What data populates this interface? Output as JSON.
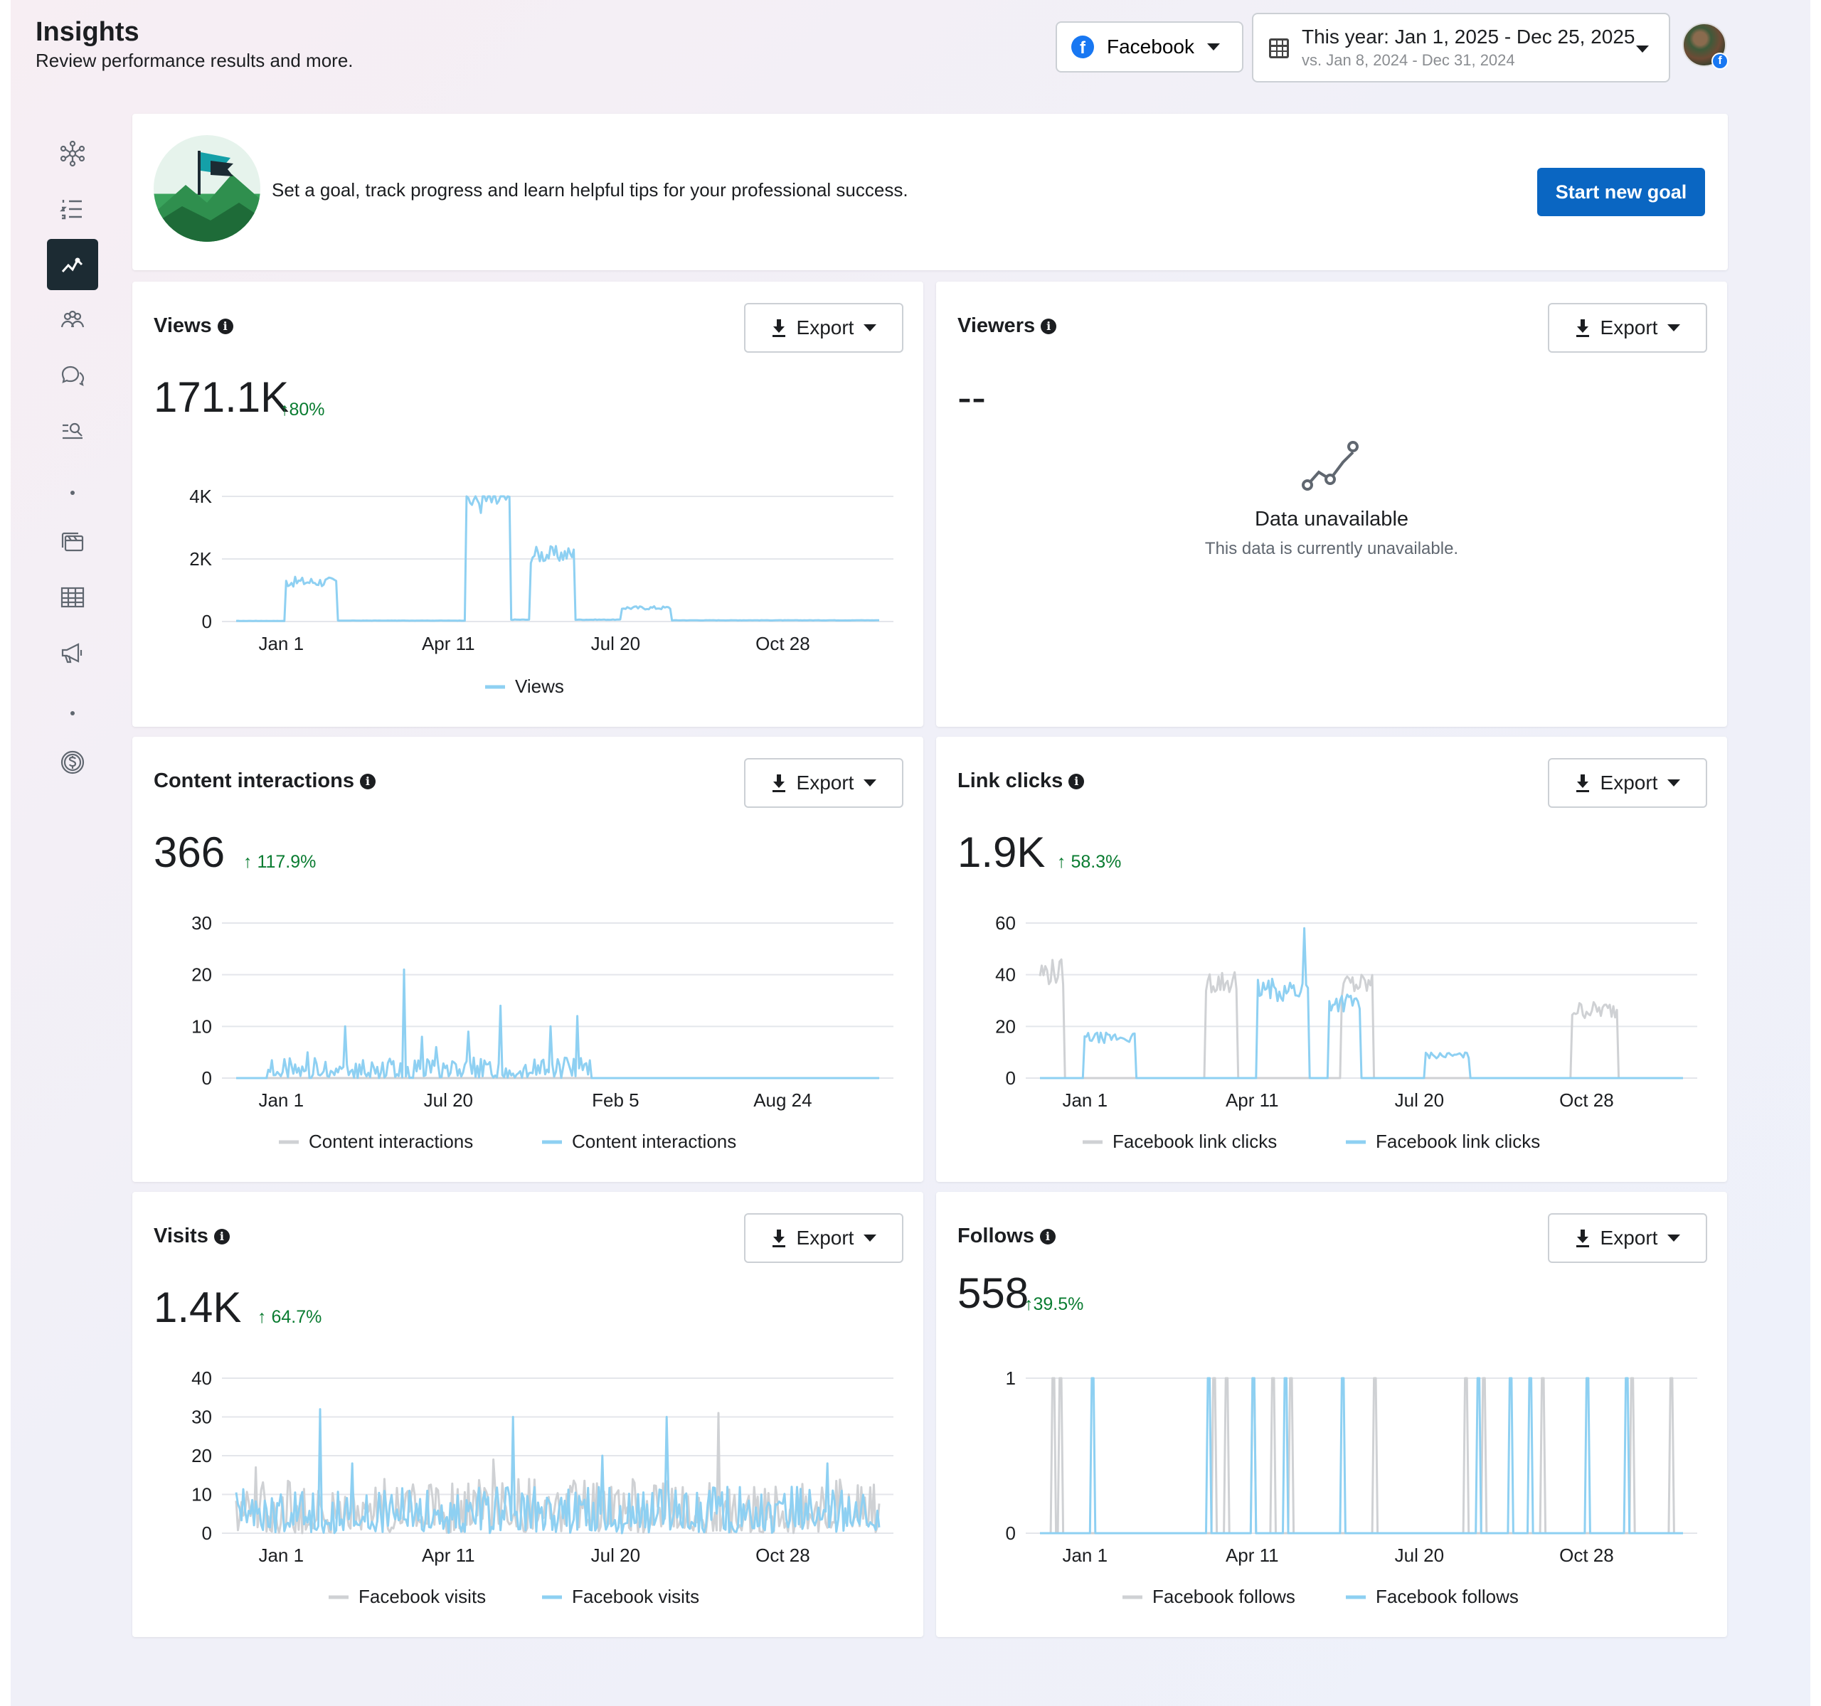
{
  "header": {
    "title": "Insights",
    "subtitle": "Review performance results and more.",
    "platform_label": "Facebook",
    "date_range": "This year: Jan 1, 2025 - Dec 25, 2025",
    "date_compare": "vs. Jan 8, 2024 - Dec 31, 2024"
  },
  "sidebar": {
    "icons": [
      "network-icon",
      "list-icon",
      "insights-icon",
      "audience-icon",
      "comments-icon",
      "search-list-icon",
      "content-icon",
      "table-icon",
      "megaphone-icon",
      "dollar-icon"
    ],
    "active": "insights-icon"
  },
  "goal": {
    "text": "Set a goal, track progress and learn helpful tips for your professional success.",
    "button": "Start new goal"
  },
  "export_label": "Export",
  "colors": {
    "current": "#8ed0f2",
    "previous": "#cfd1d4",
    "positive": "#0a7c31",
    "accent": "#0a66c2"
  },
  "cards": {
    "views": {
      "title": "Views",
      "value": "171.1K",
      "change": "↑80%"
    },
    "viewers": {
      "title": "Viewers",
      "value": "--",
      "unavailable_title": "Data unavailable",
      "unavailable_sub": "This data is currently unavailable."
    },
    "interactions": {
      "title": "Content interactions",
      "value": "366",
      "change": "↑ 117.9%"
    },
    "links": {
      "title": "Link clicks",
      "value": "1.9K",
      "change": "↑ 58.3%"
    },
    "visits": {
      "title": "Visits",
      "value": "1.4K",
      "change": "↑ 64.7%"
    },
    "follows": {
      "title": "Follows",
      "value": "558",
      "change": "↑39.5%"
    }
  },
  "chart_data": [
    {
      "id": "views",
      "type": "line",
      "title": "",
      "xlabel": "",
      "ylabel": "",
      "yticks": [
        "0",
        "2K",
        "4K"
      ],
      "ylim": [
        0,
        4000
      ],
      "xticks": [
        "Jan 1",
        "Apr 11",
        "Jul 20",
        "Oct 28"
      ],
      "legend": [
        "Views"
      ],
      "series": [
        {
          "name": "Views",
          "role": "current",
          "segments": [
            [
              0,
              0.08,
              20
            ],
            [
              0.08,
              0.16,
              1300
            ],
            [
              0.16,
              0.36,
              30
            ],
            [
              0.36,
              0.43,
              4000
            ],
            [
              0.43,
              0.46,
              60
            ],
            [
              0.46,
              0.53,
              2200
            ],
            [
              0.53,
              0.6,
              60
            ],
            [
              0.6,
              0.68,
              450
            ],
            [
              0.68,
              1,
              40
            ]
          ]
        }
      ]
    },
    {
      "id": "interactions",
      "type": "line",
      "title": "",
      "xlabel": "",
      "ylabel": "",
      "yticks": [
        "0",
        "10",
        "20",
        "30"
      ],
      "ylim": [
        0,
        30
      ],
      "xticks": [
        "Jan 1",
        "Jul 20",
        "Feb 5",
        "Aug 24"
      ],
      "legend": [
        "Content interactions",
        "Content interactions"
      ],
      "series": [
        {
          "name": "Content interactions",
          "role": "previous",
          "segments": [
            [
              0,
              1,
              0
            ]
          ]
        },
        {
          "name": "Content interactions",
          "role": "current",
          "spikes": [
            [
              0.11,
              5
            ],
            [
              0.17,
              10
            ],
            [
              0.26,
              21
            ],
            [
              0.29,
              8
            ],
            [
              0.31,
              6
            ],
            [
              0.36,
              9
            ],
            [
              0.41,
              14
            ],
            [
              0.49,
              10
            ],
            [
              0.53,
              12
            ]
          ],
          "noise": [
            0.05,
            0.55,
            4
          ]
        }
      ]
    },
    {
      "id": "links",
      "type": "line",
      "title": "",
      "xlabel": "",
      "ylabel": "",
      "yticks": [
        "0",
        "20",
        "40",
        "60"
      ],
      "ylim": [
        0,
        60
      ],
      "xticks": [
        "Jan 1",
        "Apr 11",
        "Jul 20",
        "Oct 28"
      ],
      "legend": [
        "Facebook link clicks",
        "Facebook link clicks"
      ],
      "series": [
        {
          "name": "Facebook link clicks",
          "role": "previous",
          "segments": [
            [
              0,
              0.04,
              42
            ],
            [
              0.04,
              0.26,
              0
            ],
            [
              0.26,
              0.31,
              38
            ],
            [
              0.31,
              0.47,
              0
            ],
            [
              0.47,
              0.52,
              37
            ],
            [
              0.52,
              0.83,
              0
            ],
            [
              0.83,
              0.9,
              27
            ],
            [
              0.9,
              1,
              0
            ]
          ]
        },
        {
          "name": "Facebook link clicks",
          "role": "current",
          "segments": [
            [
              0,
              0.07,
              0
            ],
            [
              0.07,
              0.15,
              16
            ],
            [
              0.15,
              0.34,
              0
            ],
            [
              0.34,
              0.42,
              35
            ],
            [
              0.42,
              0.45,
              0
            ],
            [
              0.45,
              0.5,
              30
            ],
            [
              0.5,
              0.6,
              0
            ],
            [
              0.6,
              0.67,
              9
            ],
            [
              0.67,
              1,
              0
            ]
          ],
          "spikes": [
            [
              0.41,
              58
            ]
          ]
        }
      ]
    },
    {
      "id": "visits",
      "type": "line",
      "title": "",
      "xlabel": "",
      "ylabel": "",
      "yticks": [
        "0",
        "10",
        "20",
        "30",
        "40"
      ],
      "ylim": [
        0,
        40
      ],
      "xticks": [
        "Jan 1",
        "Apr 11",
        "Jul 20",
        "Oct 28"
      ],
      "legend": [
        "Facebook visits",
        "Facebook visits"
      ],
      "series": [
        {
          "name": "Facebook visits",
          "role": "previous",
          "noise": [
            0,
            1,
            14
          ],
          "spikes": [
            [
              0.03,
              17
            ],
            [
              0.23,
              14
            ],
            [
              0.4,
              19
            ],
            [
              0.75,
              31
            ]
          ]
        },
        {
          "name": "Facebook visits",
          "role": "current",
          "noise": [
            0,
            1,
            12
          ],
          "spikes": [
            [
              0.13,
              32
            ],
            [
              0.43,
              30
            ],
            [
              0.67,
              30
            ],
            [
              0.18,
              18
            ],
            [
              0.57,
              20
            ],
            [
              0.92,
              18
            ]
          ]
        }
      ]
    },
    {
      "id": "follows",
      "type": "line",
      "title": "",
      "xlabel": "",
      "ylabel": "",
      "yticks": [
        "0",
        "1"
      ],
      "ylim": [
        0,
        1
      ],
      "xticks": [
        "Jan 1",
        "Apr 11",
        "Jul 20",
        "Oct 28"
      ],
      "legend": [
        "Facebook follows",
        "Facebook follows"
      ],
      "series": [
        {
          "name": "Facebook follows",
          "role": "previous",
          "spikes": [
            [
              0.02,
              1
            ],
            [
              0.03,
              1
            ],
            [
              0.27,
              1
            ],
            [
              0.29,
              1
            ],
            [
              0.33,
              1
            ],
            [
              0.36,
              1
            ],
            [
              0.39,
              1
            ],
            [
              0.52,
              1
            ],
            [
              0.66,
              1
            ],
            [
              0.69,
              1
            ],
            [
              0.78,
              1
            ],
            [
              0.92,
              1
            ],
            [
              0.98,
              1
            ]
          ]
        },
        {
          "name": "Facebook follows",
          "role": "current",
          "spikes": [
            [
              0.08,
              1
            ],
            [
              0.26,
              1
            ],
            [
              0.33,
              1
            ],
            [
              0.38,
              1
            ],
            [
              0.47,
              1
            ],
            [
              0.68,
              1
            ],
            [
              0.73,
              1
            ],
            [
              0.76,
              1
            ],
            [
              0.85,
              1
            ],
            [
              0.91,
              1
            ]
          ]
        }
      ]
    }
  ]
}
